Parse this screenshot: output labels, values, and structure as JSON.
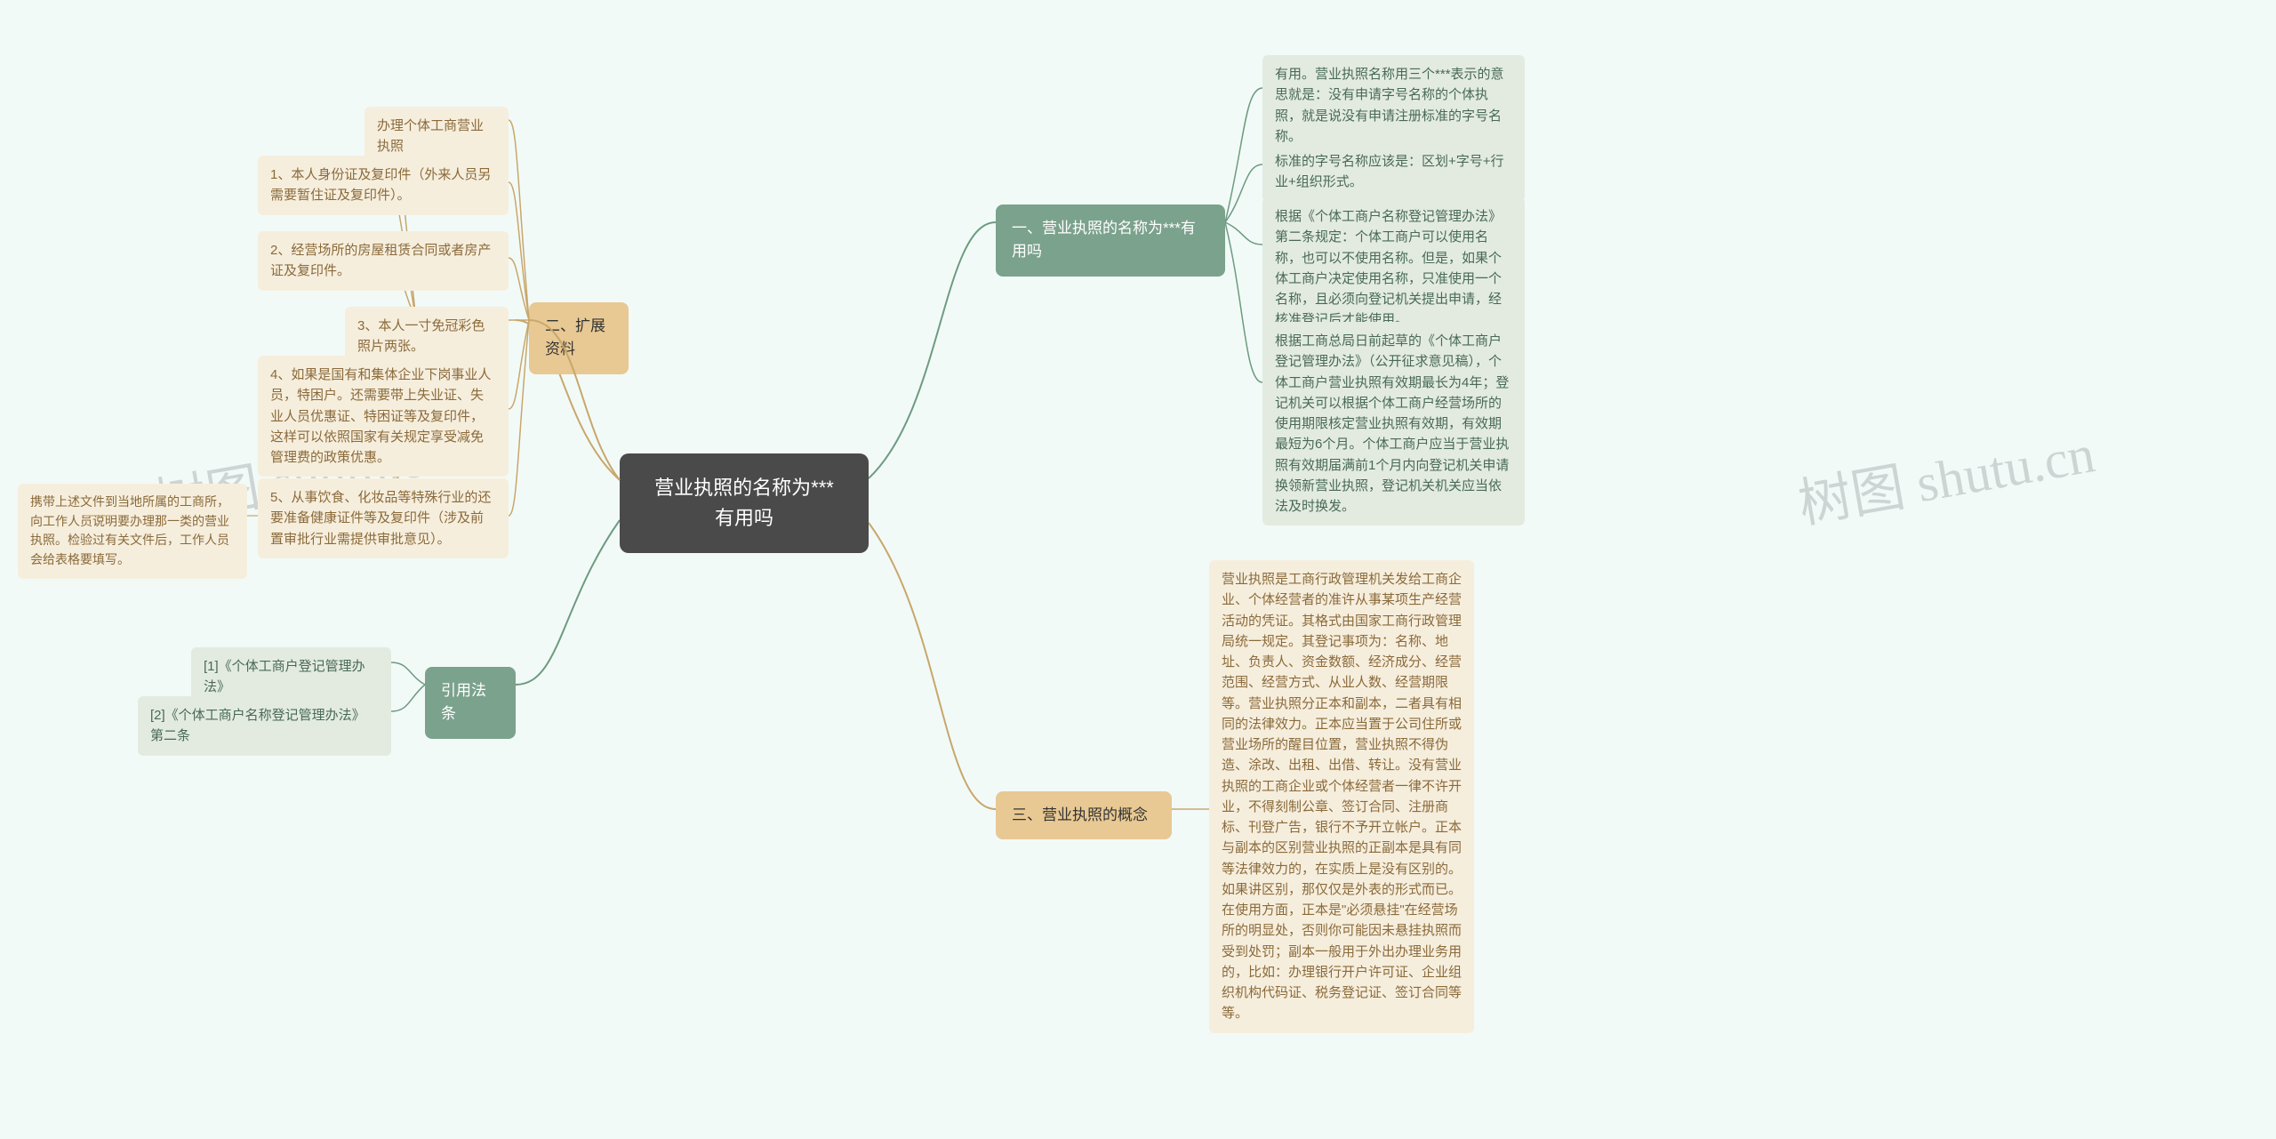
{
  "colors": {
    "background": "#f2faf8",
    "center_bg": "#4a4a4a",
    "center_text": "#ffffff",
    "branch_green_bg": "#7ba28c",
    "branch_green_text": "#ffffff",
    "branch_tan_bg": "#e8c893",
    "branch_tan_text": "#333333",
    "leaf_green_bg": "#e3ebe1",
    "leaf_green_text": "#486a54",
    "leaf_tan_bg": "#f6eedd",
    "leaf_tan_text": "#8a6a3a",
    "connector_green": "#6d9b80",
    "connector_tan": "#c8a76a"
  },
  "center": {
    "title": "营业执照的名称为***有用吗"
  },
  "branches": {
    "b1": {
      "label": "一、营业执照的名称为***有用吗",
      "leaves": {
        "l1": "有用。营业执照名称用三个***表示的意思就是：没有申请字号名称的个体执照，就是说没有申请注册标准的字号名称。",
        "l2": "标准的字号名称应该是：区划+字号+行业+组织形式。",
        "l3": "根据《个体工商户名称登记管理办法》第二条规定：个体工商户可以使用名称，也可以不使用名称。但是，如果个体工商户决定使用名称，只准使用一个名称，且必须向登记机关提出申请，经核准登记后才能使用。",
        "l4": "根据工商总局日前起草的《个体工商户登记管理办法》（公开征求意见稿），个体工商户营业执照有效期最长为4年；登记机关可以根据个体工商户经营场所的使用期限核定营业执照有效期，有效期最短为6个月。个体工商户应当于营业执照有效期届满前1个月内向登记机关申请换领新营业执照，登记机关机关应当依法及时换发。"
      }
    },
    "b2": {
      "label": "二、扩展资料",
      "leaves": {
        "l1": "办理个体工商营业执照",
        "l2": "1、本人身份证及复印件（外来人员另需要暂住证及复印件）。",
        "l3": "2、经营场所的房屋租赁合同或者房产证及复印件。",
        "l4": "3、本人一寸免冠彩色照片两张。",
        "l5": "4、如果是国有和集体企业下岗事业人员，特困户。还需要带上失业证、失业人员优惠证、特困证等及复印件，这样可以依照国家有关规定享受减免管理费的政策优惠。",
        "l6": "5、从事饮食、化妆品等特殊行业的还要准备健康证件等及复印件（涉及前置审批行业需提供审批意见）。",
        "l6_sub": "携带上述文件到当地所属的工商所，向工作人员说明要办理那一类的营业执照。检验过有关文件后，工作人员会给表格要填写。"
      }
    },
    "b3": {
      "label": "三、营业执照的概念",
      "leaves": {
        "l1": "营业执照是工商行政管理机关发给工商企业、个体经营者的准许从事某项生产经营活动的凭证。其格式由国家工商行政管理局统一规定。其登记事项为：名称、地址、负责人、资金数额、经济成分、经营范围、经营方式、从业人数、经营期限等。营业执照分正本和副本，二者具有相同的法律效力。正本应当置于公司住所或营业场所的醒目位置，营业执照不得伪造、涂改、出租、出借、转让。没有营业执照的工商企业或个体经营者一律不许开业，不得刻制公章、签订合同、注册商标、刊登广告，银行不予开立帐户。正本与副本的区别营业执照的正副本是具有同等法律效力的，在实质上是没有区别的。如果讲区别，那仅仅是外表的形式而已。在使用方面，正本是\"必须悬挂\"在经营场所的明显处，否则你可能因未悬挂执照而受到处罚；副本一般用于外出办理业务用的，比如：办理银行开户许可证、企业组织机构代码证、税务登记证、签订合同等等。"
      }
    },
    "b4": {
      "label": "引用法条",
      "leaves": {
        "l1": "[1]《个体工商户登记管理办法》",
        "l2": "[2]《个体工商户名称登记管理办法》 第二条"
      }
    }
  },
  "watermarks": {
    "w1": "树图 shutu.cn",
    "w2": "树图 shutu.cn"
  }
}
